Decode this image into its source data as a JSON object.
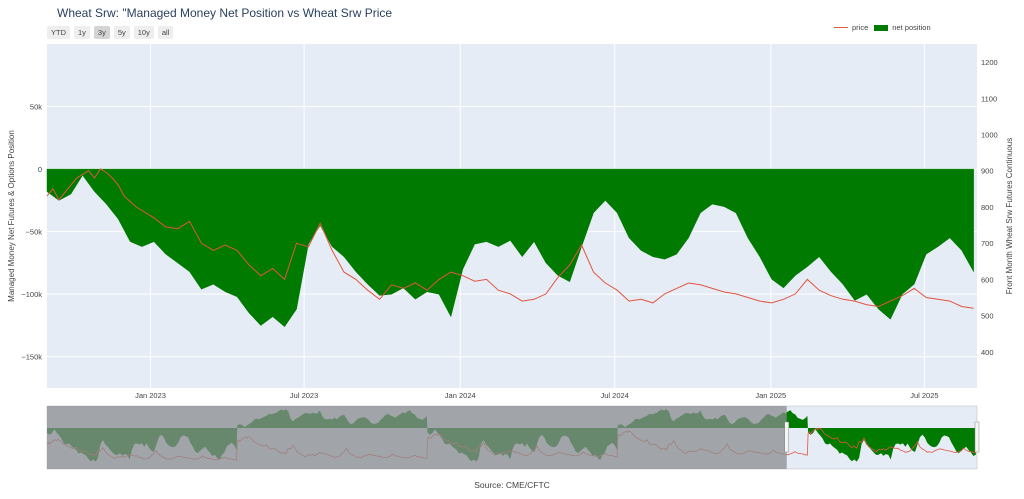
{
  "title": "Wheat Srw: \"Managed Money Net Position vs Wheat Srw Price",
  "range_buttons": [
    {
      "label": "YTD",
      "active": false
    },
    {
      "label": "1y",
      "active": false
    },
    {
      "label": "3y",
      "active": true
    },
    {
      "label": "5y",
      "active": false
    },
    {
      "label": "10y",
      "active": false
    },
    {
      "label": "all",
      "active": false
    }
  ],
  "legend": {
    "price": "price",
    "net_position": "net position"
  },
  "source": "Source: CME/CFTC",
  "colors": {
    "price": "#e2553e",
    "net_position": "#007a00",
    "plot_bg": "#e5ecf6",
    "selector_dim": "#8a8d90"
  },
  "chart_data": {
    "type": "area",
    "xlabel": "",
    "ylabel_left": "Managed Money Net Futures & Options Position",
    "ylabel_right": "Front Month Wheat Srw Futures Continuous",
    "x_range": [
      "2022-09-01",
      "2025-09-01"
    ],
    "y_left_range": [
      -175000,
      100000
    ],
    "y_right_range": [
      300,
      1250
    ],
    "x_ticks": [
      {
        "date": "2023-01-01",
        "label": "Jan 2023"
      },
      {
        "date": "2023-07-01",
        "label": "Jul 2023"
      },
      {
        "date": "2024-01-01",
        "label": "Jan 2024"
      },
      {
        "date": "2024-07-01",
        "label": "Jul 2024"
      },
      {
        "date": "2025-01-01",
        "label": "Jan 2025"
      },
      {
        "date": "2025-07-01",
        "label": "Jul 2025"
      }
    ],
    "y_left_ticks": [
      {
        "v": 50000,
        "label": "50k"
      },
      {
        "v": 0,
        "label": "0"
      },
      {
        "v": -50000,
        "label": "−50k"
      },
      {
        "v": -100000,
        "label": "−100k"
      },
      {
        "v": -150000,
        "label": "−150k"
      }
    ],
    "y_right_ticks": [
      {
        "v": 400,
        "label": "400"
      },
      {
        "v": 500,
        "label": "500"
      },
      {
        "v": 600,
        "label": "600"
      },
      {
        "v": 700,
        "label": "700"
      },
      {
        "v": 800,
        "label": "800"
      },
      {
        "v": 900,
        "label": "900"
      },
      {
        "v": 1000,
        "label": "1000"
      },
      {
        "v": 1100,
        "label": "1100"
      },
      {
        "v": 1200,
        "label": "1200"
      }
    ],
    "series": [
      {
        "name": "net position",
        "axis": "left",
        "points": [
          [
            "2022-09-01",
            -18000
          ],
          [
            "2022-09-15",
            -25000
          ],
          [
            "2022-09-29",
            -20000
          ],
          [
            "2022-10-13",
            -5000
          ],
          [
            "2022-10-27",
            -18000
          ],
          [
            "2022-11-10",
            -28000
          ],
          [
            "2022-11-24",
            -40000
          ],
          [
            "2022-12-08",
            -58000
          ],
          [
            "2022-12-22",
            -62000
          ],
          [
            "2023-01-05",
            -58000
          ],
          [
            "2023-01-19",
            -68000
          ],
          [
            "2023-02-02",
            -75000
          ],
          [
            "2023-02-16",
            -82000
          ],
          [
            "2023-03-02",
            -96000
          ],
          [
            "2023-03-16",
            -92000
          ],
          [
            "2023-03-30",
            -98000
          ],
          [
            "2023-04-13",
            -102000
          ],
          [
            "2023-04-27",
            -115000
          ],
          [
            "2023-05-11",
            -125000
          ],
          [
            "2023-05-25",
            -118000
          ],
          [
            "2023-06-08",
            -126000
          ],
          [
            "2023-06-22",
            -112000
          ],
          [
            "2023-07-06",
            -60000
          ],
          [
            "2023-07-20",
            -45000
          ],
          [
            "2023-08-03",
            -62000
          ],
          [
            "2023-08-17",
            -70000
          ],
          [
            "2023-08-31",
            -82000
          ],
          [
            "2023-09-14",
            -92000
          ],
          [
            "2023-09-28",
            -101000
          ],
          [
            "2023-10-12",
            -100000
          ],
          [
            "2023-10-26",
            -95000
          ],
          [
            "2023-11-09",
            -104000
          ],
          [
            "2023-11-23",
            -98000
          ],
          [
            "2023-12-07",
            -100000
          ],
          [
            "2023-12-21",
            -118000
          ],
          [
            "2024-01-04",
            -80000
          ],
          [
            "2024-01-18",
            -60000
          ],
          [
            "2024-02-01",
            -58000
          ],
          [
            "2024-02-15",
            -62000
          ],
          [
            "2024-02-29",
            -57000
          ],
          [
            "2024-03-14",
            -70000
          ],
          [
            "2024-03-28",
            -58000
          ],
          [
            "2024-04-11",
            -75000
          ],
          [
            "2024-04-25",
            -85000
          ],
          [
            "2024-05-09",
            -90000
          ],
          [
            "2024-05-23",
            -62000
          ],
          [
            "2024-06-06",
            -35000
          ],
          [
            "2024-06-20",
            -25000
          ],
          [
            "2024-07-04",
            -35000
          ],
          [
            "2024-07-18",
            -55000
          ],
          [
            "2024-08-01",
            -65000
          ],
          [
            "2024-08-15",
            -70000
          ],
          [
            "2024-08-29",
            -72000
          ],
          [
            "2024-09-12",
            -68000
          ],
          [
            "2024-09-26",
            -55000
          ],
          [
            "2024-10-10",
            -35000
          ],
          [
            "2024-10-24",
            -28000
          ],
          [
            "2024-11-07",
            -30000
          ],
          [
            "2024-11-21",
            -35000
          ],
          [
            "2024-12-05",
            -55000
          ],
          [
            "2024-12-19",
            -70000
          ],
          [
            "2025-01-02",
            -88000
          ],
          [
            "2025-01-16",
            -95000
          ],
          [
            "2025-01-30",
            -85000
          ],
          [
            "2025-02-13",
            -78000
          ],
          [
            "2025-02-27",
            -70000
          ],
          [
            "2025-03-13",
            -82000
          ],
          [
            "2025-03-27",
            -92000
          ],
          [
            "2025-04-10",
            -105000
          ],
          [
            "2025-04-24",
            -100000
          ],
          [
            "2025-05-08",
            -112000
          ],
          [
            "2025-05-22",
            -120000
          ],
          [
            "2025-06-05",
            -100000
          ],
          [
            "2025-06-19",
            -92000
          ],
          [
            "2025-07-03",
            -68000
          ],
          [
            "2025-07-17",
            -62000
          ],
          [
            "2025-07-31",
            -55000
          ],
          [
            "2025-08-14",
            -65000
          ],
          [
            "2025-08-28",
            -82000
          ]
        ]
      },
      {
        "name": "price",
        "axis": "right",
        "points": [
          [
            "2022-09-01",
            830
          ],
          [
            "2022-09-08",
            850
          ],
          [
            "2022-09-15",
            820
          ],
          [
            "2022-09-22",
            840
          ],
          [
            "2022-09-29",
            860
          ],
          [
            "2022-10-06",
            880
          ],
          [
            "2022-10-13",
            890
          ],
          [
            "2022-10-20",
            900
          ],
          [
            "2022-10-27",
            880
          ],
          [
            "2022-11-03",
            905
          ],
          [
            "2022-11-10",
            895
          ],
          [
            "2022-11-17",
            880
          ],
          [
            "2022-11-24",
            860
          ],
          [
            "2022-12-01",
            830
          ],
          [
            "2022-12-15",
            800
          ],
          [
            "2023-01-05",
            770
          ],
          [
            "2023-01-19",
            745
          ],
          [
            "2023-02-02",
            740
          ],
          [
            "2023-02-16",
            760
          ],
          [
            "2023-03-02",
            700
          ],
          [
            "2023-03-16",
            680
          ],
          [
            "2023-03-30",
            695
          ],
          [
            "2023-04-13",
            680
          ],
          [
            "2023-04-27",
            640
          ],
          [
            "2023-05-11",
            610
          ],
          [
            "2023-05-25",
            630
          ],
          [
            "2023-06-08",
            600
          ],
          [
            "2023-06-22",
            700
          ],
          [
            "2023-07-06",
            690
          ],
          [
            "2023-07-20",
            755
          ],
          [
            "2023-08-03",
            680
          ],
          [
            "2023-08-17",
            620
          ],
          [
            "2023-08-31",
            600
          ],
          [
            "2023-09-14",
            570
          ],
          [
            "2023-09-28",
            545
          ],
          [
            "2023-10-12",
            585
          ],
          [
            "2023-10-26",
            575
          ],
          [
            "2023-11-09",
            590
          ],
          [
            "2023-11-23",
            570
          ],
          [
            "2023-12-07",
            600
          ],
          [
            "2023-12-21",
            620
          ],
          [
            "2024-01-04",
            610
          ],
          [
            "2024-01-18",
            595
          ],
          [
            "2024-02-01",
            600
          ],
          [
            "2024-02-15",
            570
          ],
          [
            "2024-02-29",
            560
          ],
          [
            "2024-03-14",
            540
          ],
          [
            "2024-03-28",
            545
          ],
          [
            "2024-04-11",
            560
          ],
          [
            "2024-04-25",
            605
          ],
          [
            "2024-05-09",
            640
          ],
          [
            "2024-05-23",
            695
          ],
          [
            "2024-06-06",
            620
          ],
          [
            "2024-06-20",
            590
          ],
          [
            "2024-07-04",
            570
          ],
          [
            "2024-07-18",
            540
          ],
          [
            "2024-08-01",
            545
          ],
          [
            "2024-08-15",
            535
          ],
          [
            "2024-08-29",
            560
          ],
          [
            "2024-09-12",
            575
          ],
          [
            "2024-09-26",
            590
          ],
          [
            "2024-10-10",
            585
          ],
          [
            "2024-10-24",
            575
          ],
          [
            "2024-11-07",
            565
          ],
          [
            "2024-11-21",
            560
          ],
          [
            "2024-12-05",
            550
          ],
          [
            "2024-12-19",
            540
          ],
          [
            "2025-01-02",
            535
          ],
          [
            "2025-01-16",
            545
          ],
          [
            "2025-01-30",
            560
          ],
          [
            "2025-02-13",
            600
          ],
          [
            "2025-02-27",
            570
          ],
          [
            "2025-03-13",
            555
          ],
          [
            "2025-03-27",
            545
          ],
          [
            "2025-04-10",
            540
          ],
          [
            "2025-04-24",
            530
          ],
          [
            "2025-05-08",
            525
          ],
          [
            "2025-05-22",
            540
          ],
          [
            "2025-06-05",
            555
          ],
          [
            "2025-06-19",
            575
          ],
          [
            "2025-07-03",
            550
          ],
          [
            "2025-07-17",
            545
          ],
          [
            "2025-07-31",
            540
          ],
          [
            "2025-08-14",
            525
          ],
          [
            "2025-08-28",
            520
          ]
        ]
      }
    ],
    "range_selector": {
      "full_range": [
        "2011-01-01",
        "2025-09-01"
      ],
      "visible_range": [
        "2022-09-01",
        "2025-09-01"
      ]
    }
  }
}
